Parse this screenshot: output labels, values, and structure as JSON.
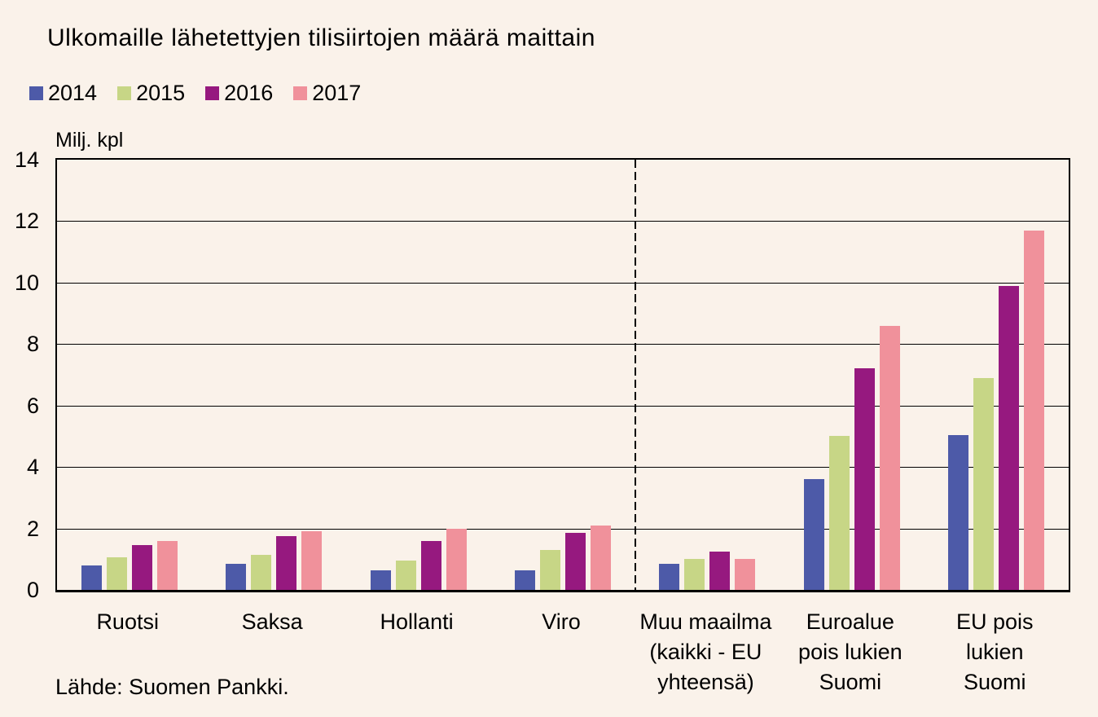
{
  "title": "Ulkomaille lähetettyjen tilisiirtojen määrä maittain",
  "source": "Lähde: Suomen Pankki.",
  "colors": {
    "background": "#faf2ea",
    "axis": "#000000",
    "text": "#000000",
    "series_2014": "#4d5aa8",
    "series_2015": "#c7d686",
    "series_2016": "#96197f",
    "series_2017": "#f0919b"
  },
  "chart_data": {
    "type": "bar",
    "title": "Ulkomaille lähetettyjen tilisiirtojen määrä maittain",
    "xlabel": "",
    "ylabel": "Milj. kpl",
    "ylim": [
      0,
      14
    ],
    "ytick_interval": 2,
    "yticks": [
      0,
      2,
      4,
      6,
      8,
      10,
      12,
      14
    ],
    "grid": "horizontal",
    "legend_position": "top-left",
    "categories": [
      "Ruotsi",
      "Saksa",
      "Hollanti",
      "Viro",
      "Muu maailma\n(kaikki - EU\nyhteensä)",
      "Euroalue\npois lukien\nSuomi",
      "EU pois\nlukien Suomi"
    ],
    "series": [
      {
        "name": "2014",
        "color": "#4d5aa8",
        "values": [
          0.8,
          0.85,
          0.65,
          0.65,
          0.85,
          3.6,
          5.05
        ]
      },
      {
        "name": "2015",
        "color": "#c7d686",
        "values": [
          1.05,
          1.15,
          0.95,
          1.3,
          1.0,
          5.0,
          6.9
        ]
      },
      {
        "name": "2016",
        "color": "#96197f",
        "values": [
          1.45,
          1.75,
          1.6,
          1.85,
          1.25,
          7.2,
          9.9
        ]
      },
      {
        "name": "2017",
        "color": "#f0919b",
        "values": [
          1.6,
          1.9,
          2.0,
          2.1,
          1.0,
          8.6,
          11.7
        ]
      }
    ],
    "separator": {
      "type": "dashed-vertical-line",
      "after_category_index": 3,
      "between_categories": [
        "Viro",
        "Muu maailma\n(kaikki - EU\nyhteensä)"
      ]
    }
  }
}
